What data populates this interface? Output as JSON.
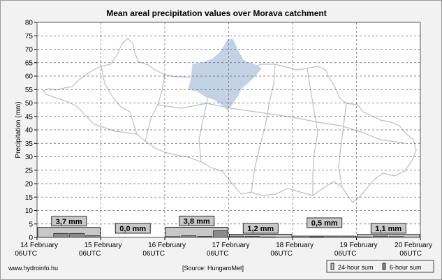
{
  "colors": {
    "bar_24h": "#c8c8c8",
    "bar_6h": "#8a8a8a",
    "label_box": "#c8c8c8",
    "map_fill": "#ffffff",
    "map_stroke": "#b8bfcc",
    "catchment_fill": "#c4d2e6",
    "grid": "#666666",
    "plot_bg": "#ffffff"
  },
  "footer": {
    "website": "www.hydroinfo.hu",
    "source": "[Source: HungaroMet]"
  },
  "chart_data": {
    "type": "bar",
    "title": "Mean areal precipitation values over Morava catchment",
    "xlabel": "",
    "ylabel": "Precipitation (mm)",
    "ylim": [
      0,
      80
    ],
    "y_ticks": [
      0,
      5,
      10,
      15,
      20,
      25,
      30,
      35,
      40,
      45,
      50,
      55,
      60,
      65,
      70,
      75,
      80
    ],
    "grid": true,
    "x_ticks": [
      {
        "line1": "14 February",
        "line2": "06UTC"
      },
      {
        "line1": "15 February",
        "line2": "06UTC"
      },
      {
        "line1": "16 February",
        "line2": "06UTC"
      },
      {
        "line1": "17 February",
        "line2": "06UTC"
      },
      {
        "line1": "18 February",
        "line2": "06UTC"
      },
      {
        "line1": "19 February",
        "line2": "06UTC"
      },
      {
        "line1": "20 February",
        "line2": "06UTC"
      }
    ],
    "legend": {
      "position": "bottom-right",
      "items": [
        "24-hour sum",
        "6-hour sum"
      ]
    },
    "series": [
      {
        "name": "24-hour sum",
        "periods": [
          "14 February 06UTC",
          "15 February 06UTC",
          "16 February 06UTC",
          "17 February 06UTC",
          "18 February 06UTC",
          "19 February 06UTC"
        ],
        "values": [
          3.7,
          0.0,
          3.8,
          1.2,
          0.5,
          1.1
        ],
        "labels": [
          "3,7 mm",
          "0,0 mm",
          "3,8 mm",
          "1,2 mm",
          "0,5 mm",
          "1,1 mm"
        ]
      },
      {
        "name": "6-hour sum",
        "values": [
          0.1,
          1.5,
          1.5,
          0.6,
          0,
          0,
          0,
          0,
          0.3,
          0.6,
          0.4,
          2.5,
          0.5,
          0.4,
          0.2,
          0.1,
          0.1,
          0.2,
          0.1,
          0.1,
          0.2,
          0.5,
          0.3,
          0.1
        ]
      }
    ]
  }
}
